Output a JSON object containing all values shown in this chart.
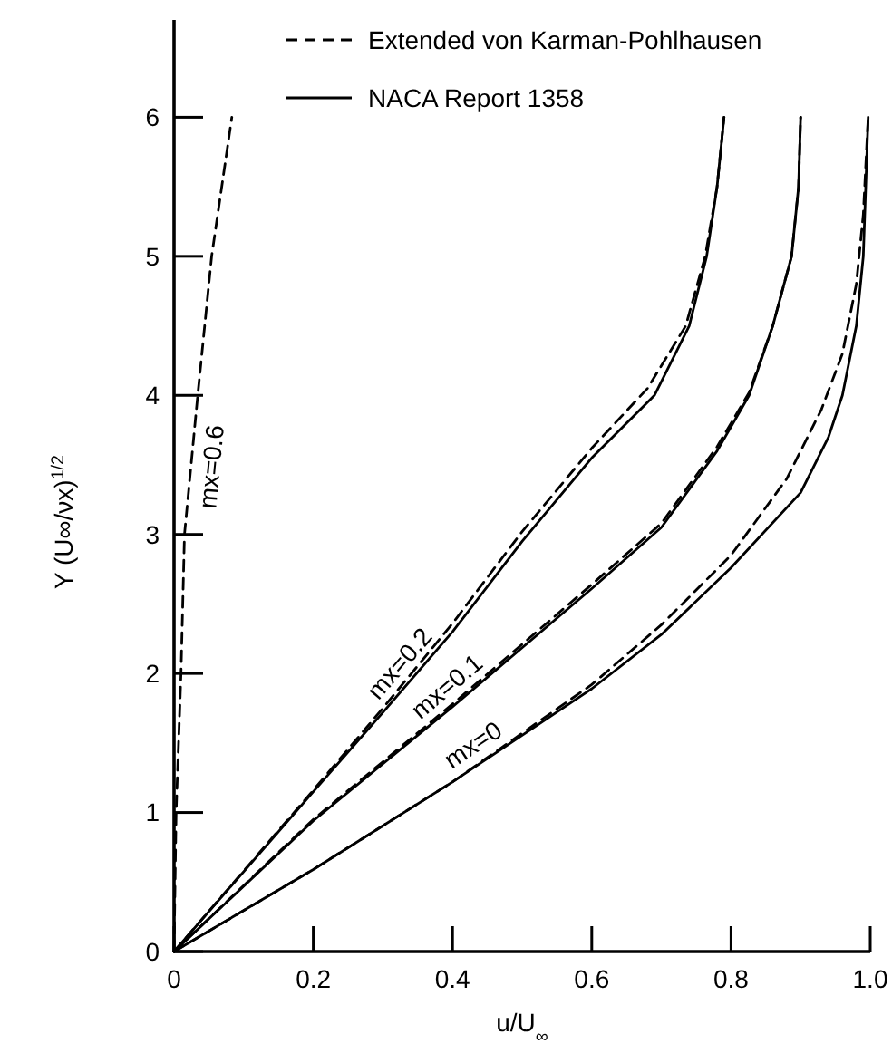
{
  "chart_data": {
    "type": "line",
    "xlabel": "u/U$_{∞}$",
    "ylabel": "Y (U∞/νx)$^{1/2}$",
    "xlim": [
      0,
      1.0
    ],
    "ylim": [
      0,
      6.7
    ],
    "xticks": [
      0,
      0.2,
      0.4,
      0.6,
      0.8,
      {
        "value": 1.0,
        "label": "1.0"
      }
    ],
    "yticks": [
      0,
      1,
      2,
      3,
      4,
      5,
      6
    ],
    "grid": false,
    "legend": "top",
    "marker": "none",
    "series": [
      {
        "name": "Extended von Karman-Pohlhausen",
        "color": "#000000",
        "line_style": "dashed",
        "x": [
          0,
          0.2,
          0.4,
          0.6,
          0.7,
          0.8,
          0.88,
          0.93,
          0.96,
          0.98,
          0.99,
          0.997
        ],
        "values": [
          0,
          0.59,
          1.22,
          1.92,
          2.35,
          2.85,
          3.4,
          3.9,
          4.3,
          4.8,
          5.3,
          6.0
        ]
      },
      {
        "name": "NACA Report 1358",
        "color": "#000000",
        "line_style": "solid",
        "x": [
          0,
          0.2,
          0.4,
          0.6,
          0.7,
          0.8,
          0.9,
          0.94,
          0.96,
          0.98,
          0.99,
          0.997
        ],
        "values": [
          0,
          0.59,
          1.22,
          1.89,
          2.28,
          2.76,
          3.3,
          3.7,
          4.0,
          4.5,
          5.0,
          6.0
        ]
      },
      {
        "color": "#000000",
        "line_style": "dashed",
        "x": [
          0,
          0.2,
          0.4,
          0.6,
          0.7,
          0.78,
          0.826,
          0.86,
          0.887,
          0.897,
          0.9
        ],
        "values": [
          0,
          0.95,
          1.78,
          2.64,
          3.08,
          3.63,
          4.02,
          4.5,
          5.0,
          5.5,
          6.0
        ]
      },
      {
        "color": "#000000",
        "line_style": "solid",
        "x": [
          0,
          0.2,
          0.4,
          0.6,
          0.7,
          0.78,
          0.826,
          0.86,
          0.887,
          0.897,
          0.9
        ],
        "values": [
          0,
          0.94,
          1.76,
          2.61,
          3.05,
          3.6,
          4.0,
          4.5,
          5.0,
          5.5,
          6.0
        ]
      },
      {
        "color": "#000000",
        "line_style": "dashed",
        "x": [
          0,
          0.2,
          0.3,
          0.4,
          0.5,
          0.6,
          0.68,
          0.735,
          0.763,
          0.78,
          0.79
        ],
        "values": [
          0,
          1.16,
          1.75,
          2.36,
          3.02,
          3.62,
          4.05,
          4.5,
          5.0,
          5.5,
          6.0
        ]
      },
      {
        "color": "#000000",
        "line_style": "solid",
        "x": [
          0,
          0.2,
          0.3,
          0.4,
          0.5,
          0.6,
          0.69,
          0.74,
          0.765,
          0.78,
          0.79
        ],
        "values": [
          0,
          1.15,
          1.72,
          2.3,
          2.95,
          3.55,
          4.0,
          4.5,
          5.0,
          5.5,
          6.0
        ]
      },
      {
        "color": "#000000",
        "line_style": "dashed",
        "x": [
          0,
          0.003,
          0.01,
          0.015,
          0.034,
          0.054,
          0.083
        ],
        "values": [
          0,
          1,
          2,
          3,
          4,
          5,
          6
        ]
      }
    ],
    "annotations": [
      {
        "text": "mx=0.6",
        "x": 0.0245,
        "y": 3.5
      },
      {
        "text": "mx=0.2",
        "x": 0.345,
        "y": 1.98
      },
      {
        "text": "mx=0.1",
        "x": 0.41,
        "y": 1.8
      },
      {
        "text": "mx=0",
        "x": 0.445,
        "y": 1.37
      }
    ]
  }
}
